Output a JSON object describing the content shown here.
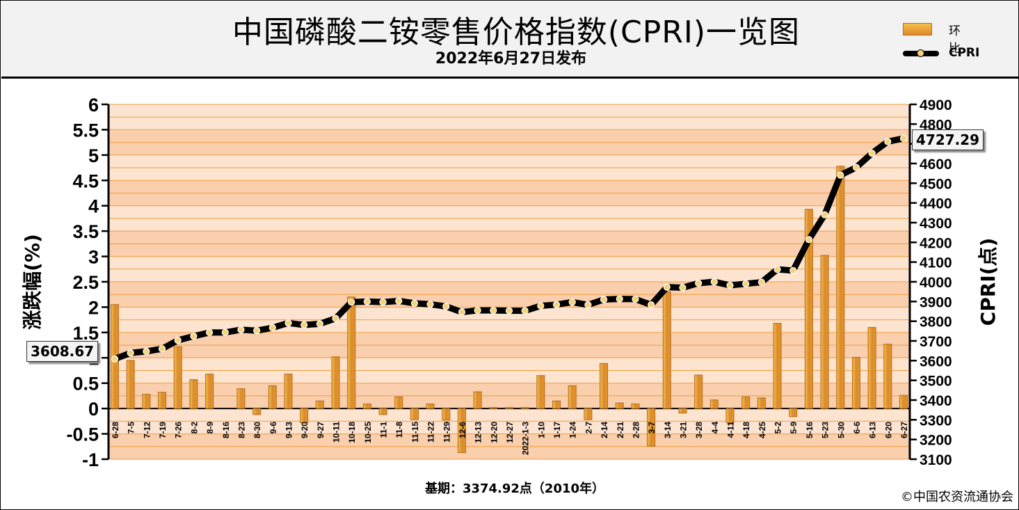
{
  "title": "中国磷酸二铵零售价格指数(CPRI)一览图",
  "subtitle": "2022年6月27日发布",
  "legend": {
    "bar_label": "环比",
    "line_label": "CPRI"
  },
  "callouts": {
    "start_value": "3608.67",
    "end_value": "4727.29"
  },
  "footer": {
    "basis": "基期：3374.92点（2010年）",
    "copyright": "©中国农资流通协会"
  },
  "colors": {
    "bar": "#e8962a",
    "bar_light": "#f5c04a",
    "band": "#f9cfae",
    "gridline": "#f29b3a",
    "line": "#000000",
    "marker": "#f3d27a"
  },
  "chart_data": {
    "type": "bar+line",
    "x": [
      "6-28",
      "7-5",
      "7-12",
      "7-19",
      "7-26",
      "8-2",
      "8-9",
      "8-16",
      "8-23",
      "8-30",
      "9-6",
      "9-13",
      "9-20",
      "9-27",
      "10-11",
      "10-18",
      "10-25",
      "11-1",
      "11-8",
      "11-15",
      "11-22",
      "11-29",
      "12-6",
      "12-13",
      "12-20",
      "12-27",
      "2022-1-3",
      "1-10",
      "1-17",
      "1-24",
      "2-7",
      "2-14",
      "2-21",
      "2-28",
      "3-7",
      "3-14",
      "3-21",
      "3-28",
      "4-4",
      "4-11",
      "4-18",
      "4-25",
      "5-2",
      "5-9",
      "5-16",
      "5-23",
      "5-30",
      "6-6",
      "6-13",
      "6-20",
      "6-27"
    ],
    "series": [
      {
        "name": "环比",
        "axis": "left",
        "type": "bar",
        "values": [
          2.05,
          0.95,
          0.28,
          0.32,
          1.22,
          0.57,
          0.68,
          0.0,
          0.39,
          -0.12,
          0.45,
          0.68,
          -0.28,
          0.15,
          1.02,
          2.2,
          0.09,
          -0.12,
          0.23,
          -0.22,
          0.09,
          -0.23,
          -0.87,
          0.33,
          0.02,
          0.02,
          0.02,
          0.65,
          0.15,
          0.45,
          -0.22,
          0.89,
          0.11,
          0.09,
          -0.74,
          2.3,
          -0.09,
          0.66,
          0.17,
          -0.28,
          0.23,
          0.21,
          1.68,
          -0.16,
          3.93,
          3.02,
          4.78,
          1.01,
          1.6,
          1.27,
          0.26
        ]
      },
      {
        "name": "CPRI",
        "axis": "right",
        "type": "line",
        "values": [
          3608.67,
          3639,
          3647,
          3660,
          3703,
          3724,
          3743,
          3743,
          3757,
          3752,
          3767,
          3791,
          3781,
          3787,
          3814,
          3897,
          3900,
          3897,
          3903,
          3891,
          3886,
          3875,
          3846,
          3855,
          3855,
          3853,
          3853,
          3878,
          3884,
          3897,
          3883,
          3910,
          3913,
          3912,
          3883,
          3973,
          3970,
          3993,
          4000,
          3982,
          3990,
          3998,
          4063,
          4057,
          4214,
          4340,
          4541,
          4580,
          4652,
          4711,
          4727.29
        ]
      }
    ],
    "y_left": {
      "label": "涨跌幅(%)",
      "min": -1,
      "max": 6,
      "ticks": [
        "6",
        "5.5",
        "5",
        "4.5",
        "4",
        "3.5",
        "3",
        "2.5",
        "2",
        "1.5",
        "1",
        "0.5",
        "0",
        "-0.5",
        "-1"
      ]
    },
    "y_right": {
      "label": "CPRI(点)",
      "min": 3100,
      "max": 4900,
      "ticks": [
        "4900",
        "4800",
        "4700",
        "4600",
        "4500",
        "4400",
        "4300",
        "4200",
        "4100",
        "4000",
        "3900",
        "3800",
        "3700",
        "3600",
        "3500",
        "3400",
        "3300",
        "3200",
        "3100"
      ]
    },
    "grid": true
  }
}
